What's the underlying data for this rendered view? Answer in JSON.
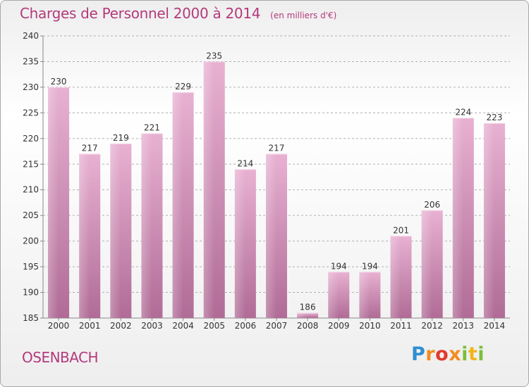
{
  "header": {
    "title": "Charges de Personnel 2000 à 2014",
    "subtitle": "(en milliers d'€)"
  },
  "footer": {
    "commune": "OSENBACH",
    "logo_text": "Proxiti"
  },
  "colors": {
    "title": "#b33a7c",
    "bar_top": "#e8b1d2",
    "bar_bottom": "#b06c96",
    "grid": "#b0b0b0"
  },
  "chart_data": {
    "type": "bar",
    "title": "Charges de Personnel 2000 à 2014",
    "subtitle": "(en milliers d'€)",
    "categories": [
      "2000",
      "2001",
      "2002",
      "2003",
      "2004",
      "2005",
      "2006",
      "2007",
      "2008",
      "2009",
      "2010",
      "2011",
      "2012",
      "2013",
      "2014"
    ],
    "values": [
      230,
      217,
      219,
      221,
      229,
      235,
      214,
      217,
      186,
      194,
      194,
      201,
      206,
      224,
      223
    ],
    "ylim": [
      185,
      240
    ],
    "yticks": [
      185,
      190,
      195,
      200,
      205,
      210,
      215,
      220,
      225,
      230,
      235,
      240
    ],
    "grid": "horizontal dashed",
    "data_labels": true,
    "legend": "none"
  }
}
